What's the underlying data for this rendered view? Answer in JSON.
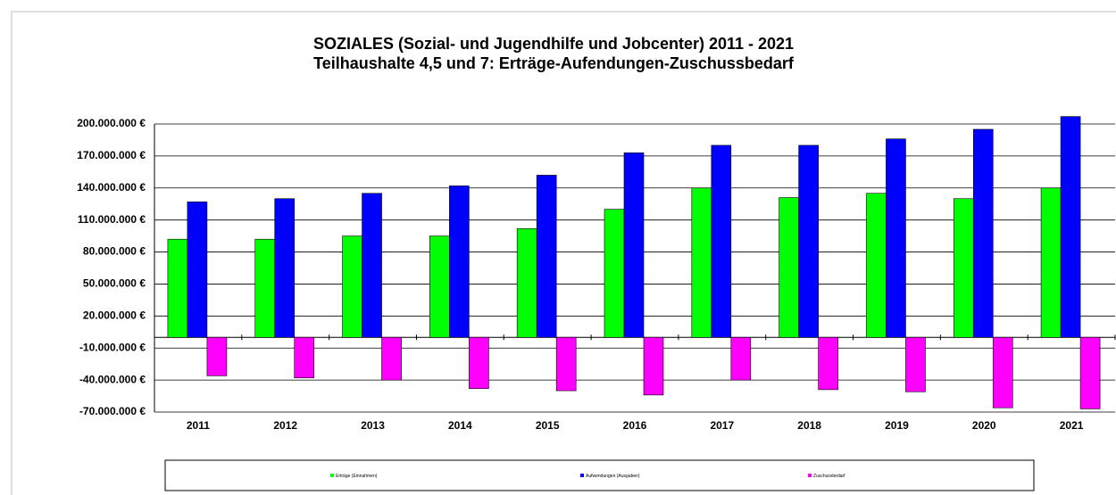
{
  "chart_data": {
    "type": "bar",
    "title": [
      "SOZIALES (Sozial- und Jugendhilfe und Jobcenter) 2011 - 2021",
      "Teilhaushalte 4,5 und 7: Erträge-Aufendungen-Zuschussbedarf"
    ],
    "categories": [
      "2011",
      "2012",
      "2013",
      "2014",
      "2015",
      "2016",
      "2017",
      "2018",
      "2019",
      "2020",
      "2021"
    ],
    "series": [
      {
        "name": "Erträge (Einnahmen)",
        "color": "#00ff00",
        "values": [
          92000000,
          92000000,
          95000000,
          95000000,
          102000000,
          120000000,
          140000000,
          131000000,
          135000000,
          130000000,
          140000000
        ]
      },
      {
        "name": "Aufwendungen (Ausgaben)",
        "color": "#0000ff",
        "values": [
          127000000,
          130000000,
          135000000,
          142000000,
          152000000,
          173000000,
          180000000,
          180000000,
          186000000,
          195000000,
          207000000
        ]
      },
      {
        "name": "Zuschussbedarf",
        "color": "#ff00ff",
        "values": [
          -36000000,
          -38000000,
          -40000000,
          -48000000,
          -50000000,
          -54000000,
          -40000000,
          -49000000,
          -51000000,
          -66000000,
          -67000000
        ]
      }
    ],
    "ylim": [
      -70000000,
      200000000
    ],
    "yticks": [
      {
        "value": -70000000,
        "label": "-70.000.000 €"
      },
      {
        "value": -40000000,
        "label": "-40.000.000 €"
      },
      {
        "value": -10000000,
        "label": "-10.000.000 €"
      },
      {
        "value": 20000000,
        "label": "20.000.000 €"
      },
      {
        "value": 50000000,
        "label": "50.000.000 €"
      },
      {
        "value": 80000000,
        "label": "80.000.000 €"
      },
      {
        "value": 110000000,
        "label": "110.000.000 €"
      },
      {
        "value": 140000000,
        "label": "140.000.000 €"
      },
      {
        "value": 170000000,
        "label": "170.000.000 €"
      },
      {
        "value": 200000000,
        "label": "200.000.000 €"
      }
    ],
    "grid": true
  }
}
